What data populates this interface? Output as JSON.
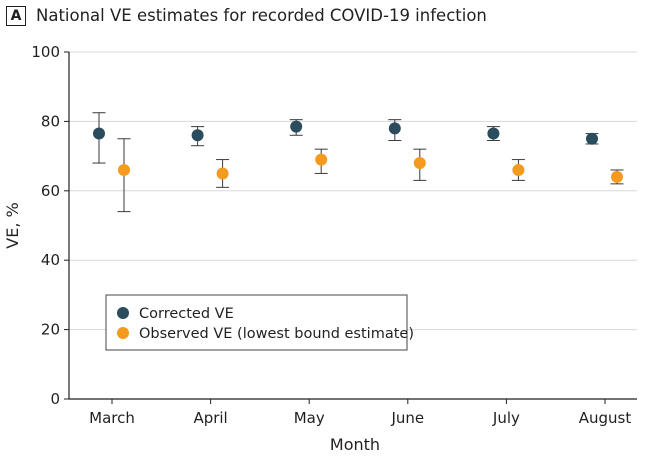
{
  "panel": {
    "letter": "A",
    "title": "National VE estimates for recorded COVID-19 infection"
  },
  "colors": {
    "corrected": "#2b4c5c",
    "observed": "#f39a1f",
    "grid": "#d8d8d8",
    "axis": "#231f20",
    "errorbar": "#3a3a3a"
  },
  "chart_data": {
    "type": "scatter",
    "title": "",
    "xlabel": "Month",
    "ylabel": "VE, %",
    "categories": [
      "March",
      "April",
      "May",
      "June",
      "July",
      "August"
    ],
    "ylim": [
      0,
      100
    ],
    "yticks": [
      0,
      20,
      40,
      60,
      80,
      100
    ],
    "grid": "horizontal",
    "legend_position": "lower-left",
    "series": [
      {
        "name": "Corrected VE",
        "color_key": "corrected",
        "values": [
          76.5,
          76,
          78.5,
          78,
          76.5,
          75
        ],
        "lower": [
          68,
          73,
          76,
          74.5,
          74.5,
          73.5
        ],
        "upper": [
          82.5,
          78.5,
          80.5,
          80.5,
          78.5,
          76.5
        ]
      },
      {
        "name": "Observed VE (lowest bound estimate)",
        "color_key": "observed",
        "values": [
          66,
          65,
          69,
          68,
          66,
          64
        ],
        "lower": [
          54,
          61,
          65,
          63,
          63,
          62
        ],
        "upper": [
          75,
          69,
          72,
          72,
          69,
          66
        ]
      }
    ]
  }
}
